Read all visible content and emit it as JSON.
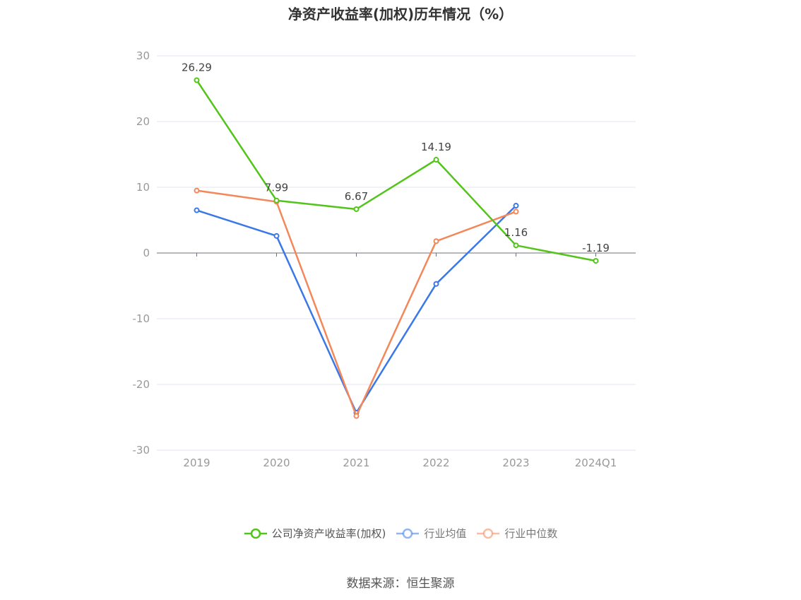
{
  "chart_data": {
    "type": "line",
    "title": "净资产收益率(加权)历年情况（%）",
    "categories": [
      "2019",
      "2020",
      "2021",
      "2022",
      "2023",
      "2024Q1"
    ],
    "ylim": [
      -30,
      30
    ],
    "yticks": [
      30,
      20,
      10,
      0,
      -10,
      -20,
      -30
    ],
    "grid": true,
    "legend_position": "bottom",
    "series": [
      {
        "name": "公司净资产收益率(加权)",
        "color": "#52c41a",
        "values": [
          26.29,
          7.99,
          6.67,
          14.19,
          1.16,
          -1.19
        ],
        "labels": [
          "26.29",
          "7.99",
          "6.67",
          "14.19",
          "1.16",
          "-1.19"
        ]
      },
      {
        "name": "行业均值",
        "color": "#3b78e7",
        "values": [
          6.5,
          2.6,
          -24.3,
          -4.7,
          7.2,
          null
        ]
      },
      {
        "name": "行业中位数",
        "color": "#f4875a",
        "values": [
          9.5,
          7.8,
          -24.8,
          1.8,
          6.3,
          null
        ]
      }
    ]
  },
  "source": "数据来源：恒生聚源"
}
